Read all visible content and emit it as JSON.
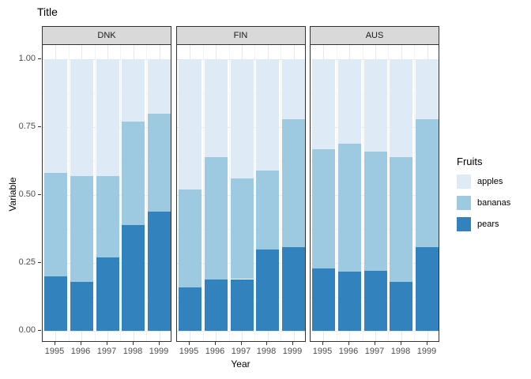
{
  "title": "Title",
  "axes": {
    "x_label": "Year",
    "y_label": "Variable",
    "y_ticks": [
      "1.00",
      "0.75",
      "0.50",
      "0.25",
      "0.00"
    ],
    "y_tick_values": [
      1.0,
      0.75,
      0.5,
      0.25,
      0.0
    ],
    "x_ticks": [
      "1995",
      "1996",
      "1997",
      "1998",
      "1999"
    ]
  },
  "legend": {
    "title": "Fruits",
    "entries": [
      {
        "label": "apples",
        "color": "#DEEBF7"
      },
      {
        "label": "bananas",
        "color": "#9ECAE1"
      },
      {
        "label": "pears",
        "color": "#3182BD"
      }
    ]
  },
  "chart_data": {
    "type": "bar",
    "stacked": true,
    "title": "Title",
    "xlabel": "Year",
    "ylabel": "Variable",
    "ylim": [
      0,
      1
    ],
    "grid": true,
    "legend_position": "right",
    "categories": [
      "1995",
      "1996",
      "1997",
      "1998",
      "1999"
    ],
    "stack_order_bottom_to_top": [
      "pears",
      "bananas",
      "apples"
    ],
    "colors": {
      "apples": "#DEEBF7",
      "bananas": "#9ECAE1",
      "pears": "#3182BD"
    },
    "facets": [
      {
        "name": "DNK",
        "series": [
          {
            "name": "pears",
            "values": [
              0.2,
              0.18,
              0.27,
              0.39,
              0.44
            ]
          },
          {
            "name": "bananas",
            "values": [
              0.38,
              0.39,
              0.3,
              0.38,
              0.36
            ]
          },
          {
            "name": "apples",
            "values": [
              0.42,
              0.43,
              0.43,
              0.23,
              0.2
            ]
          }
        ]
      },
      {
        "name": "FIN",
        "series": [
          {
            "name": "pears",
            "values": [
              0.16,
              0.19,
              0.19,
              0.3,
              0.31
            ]
          },
          {
            "name": "bananas",
            "values": [
              0.36,
              0.45,
              0.37,
              0.29,
              0.47
            ]
          },
          {
            "name": "apples",
            "values": [
              0.48,
              0.36,
              0.44,
              0.41,
              0.22
            ]
          }
        ]
      },
      {
        "name": "AUS",
        "series": [
          {
            "name": "pears",
            "values": [
              0.23,
              0.22,
              0.22,
              0.18,
              0.31
            ]
          },
          {
            "name": "bananas",
            "values": [
              0.44,
              0.47,
              0.44,
              0.46,
              0.47
            ]
          },
          {
            "name": "apples",
            "values": [
              0.33,
              0.31,
              0.34,
              0.36,
              0.22
            ]
          }
        ]
      }
    ]
  }
}
